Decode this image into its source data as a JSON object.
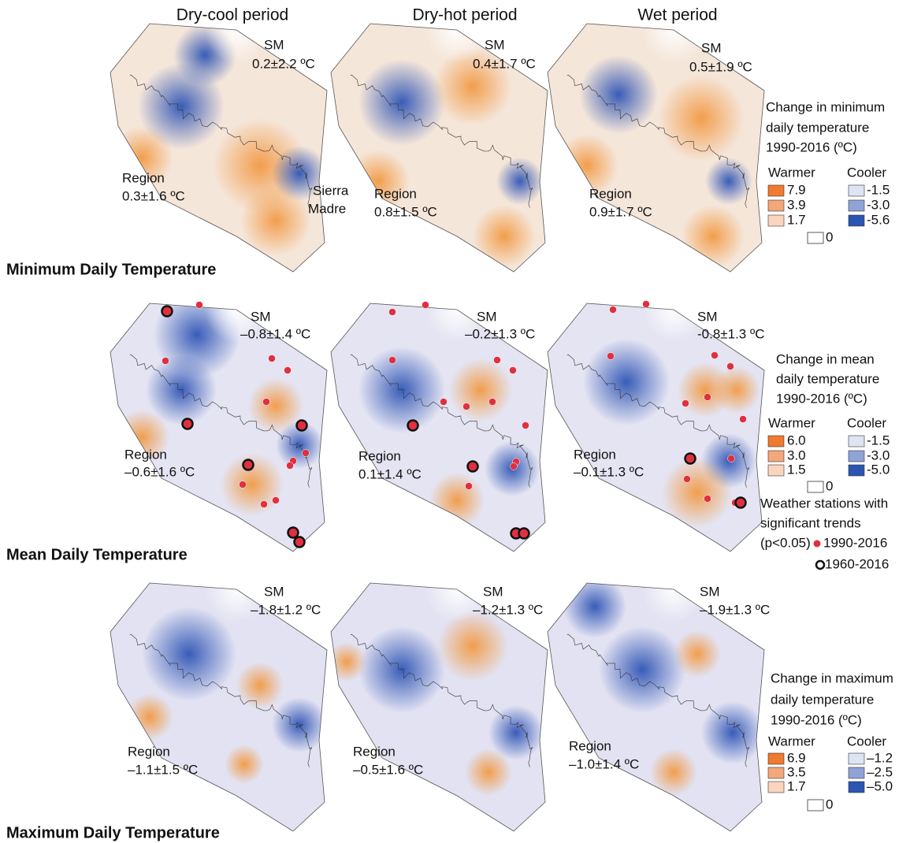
{
  "columns": [
    "Dry-cool period",
    "Dry-hot period",
    "Wet period"
  ],
  "annotation": [
    "Sierra",
    "Madre"
  ],
  "rows": [
    {
      "title": "Minimum Daily Temperature",
      "panels": [
        {
          "sm": "SM",
          "sm_value": "0.2±2.2 ºC",
          "region": "Region",
          "region_value": "0.3±1.6 ºC"
        },
        {
          "sm": "SM",
          "sm_value": "0.4±1.7 ºC",
          "region": "Region",
          "region_value": "0.8±1.5 ºC"
        },
        {
          "sm": "SM",
          "sm_value": "0.5±1.9 ºC",
          "region": "Region",
          "region_value": "0.9±1.7 ºC"
        }
      ],
      "legend": {
        "title": [
          "Change in minimum",
          "daily temperature",
          "1990-2016 (ºC)"
        ],
        "warmer": "Warmer",
        "cooler": "Cooler",
        "warm": [
          "7.9",
          "3.9",
          "1.7"
        ],
        "cool": [
          "-1.5",
          "-3.0",
          "-5.6"
        ],
        "zero": "0"
      }
    },
    {
      "title": "Mean Daily Temperature",
      "panels": [
        {
          "sm": "SM",
          "sm_value": "–0.8±1.4 ºC",
          "region": "Region",
          "region_value": "–0.6±1.6 ºC"
        },
        {
          "sm": "SM",
          "sm_value": "–0.2±1.3 ºC",
          "region": "Region",
          "region_value": "0.1±1.4 ºC"
        },
        {
          "sm": "SM",
          "sm_value": "-0.8±1.3 ºC",
          "region": "Region",
          "region_value": "–0.1±1.3 ºC"
        }
      ],
      "legend": {
        "title": [
          "Change in mean",
          "daily temperature",
          "1990-2016 (ºC)"
        ],
        "warmer": "Warmer",
        "cooler": "Cooler",
        "warm": [
          "6.0",
          "3.0",
          "1.5"
        ],
        "cool": [
          "-1.5",
          "-3.0",
          "-5.0"
        ],
        "zero": "0"
      }
    },
    {
      "title": "Maximum Daily Temperature",
      "panels": [
        {
          "sm": "SM",
          "sm_value": "–1.8±1.2 ºC",
          "region": "Region",
          "region_value": "–1.1±1.5 ºC"
        },
        {
          "sm": "SM",
          "sm_value": "–1.2±1.3 ºC",
          "region": "Region",
          "region_value": "–0.5±1.6 ºC"
        },
        {
          "sm": "SM",
          "sm_value": "–1.9±1.3 ºC",
          "region": "Region",
          "region_value": "–1.0±1.4 ºC"
        }
      ],
      "legend": {
        "title": [
          "Change in maximum",
          "daily temperature",
          "1990-2016 (ºC)"
        ],
        "warmer": "Warmer",
        "cooler": "Cooler",
        "warm": [
          "6.9",
          "3.5",
          "1.7"
        ],
        "cool": [
          "–1.2",
          "–2.5",
          "–5.0"
        ],
        "zero": "0"
      }
    }
  ],
  "stations": {
    "title": [
      "Weather stations with",
      "significant trends",
      "(p<0.05)"
    ],
    "recent": "1990-2016",
    "long": "1960-2016"
  }
}
